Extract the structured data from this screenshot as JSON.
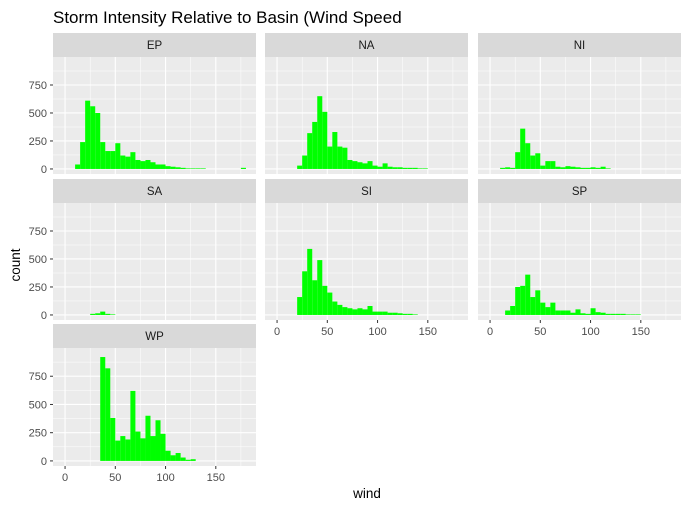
{
  "chart_data": {
    "type": "bar",
    "chart_kind": "faceted histogram",
    "title": "Storm Intensity Relative to Basin (Wind Speed",
    "xlabel": "wind",
    "ylabel": "count",
    "xlim": [
      -12,
      190
    ],
    "ylim": [
      -45,
      1000
    ],
    "x_ticks": [
      0,
      50,
      100,
      150
    ],
    "y_ticks": [
      0,
      250,
      500,
      750
    ],
    "bin_width": 5,
    "grid": true,
    "bar_color": "#00ff00",
    "panel_background": "#ebebeb",
    "strip_background": "#d9d9d9",
    "grid_color": "#ffffff",
    "facets": [
      {
        "label": "EP",
        "bin_starts": [
          10,
          15,
          20,
          25,
          30,
          35,
          40,
          45,
          50,
          55,
          60,
          65,
          70,
          75,
          80,
          85,
          90,
          95,
          100,
          105,
          110,
          115,
          120,
          125,
          130,
          135,
          175
        ],
        "counts": [
          40,
          240,
          610,
          560,
          500,
          240,
          160,
          160,
          230,
          120,
          110,
          150,
          80,
          70,
          80,
          60,
          40,
          40,
          25,
          20,
          15,
          10,
          5,
          5,
          5,
          5,
          10
        ]
      },
      {
        "label": "NA",
        "bin_starts": [
          20,
          25,
          30,
          35,
          40,
          45,
          50,
          55,
          60,
          65,
          70,
          75,
          80,
          85,
          90,
          95,
          100,
          105,
          110,
          115,
          120,
          125,
          130,
          135,
          140,
          145
        ],
        "counts": [
          30,
          120,
          320,
          420,
          650,
          510,
          200,
          330,
          200,
          190,
          80,
          70,
          60,
          50,
          70,
          30,
          20,
          50,
          20,
          15,
          15,
          10,
          10,
          10,
          5,
          5
        ]
      },
      {
        "label": "NI",
        "bin_starts": [
          10,
          15,
          20,
          25,
          30,
          35,
          40,
          45,
          50,
          55,
          60,
          65,
          70,
          75,
          80,
          85,
          90,
          95,
          100,
          105,
          110,
          115
        ],
        "counts": [
          10,
          15,
          10,
          150,
          360,
          230,
          120,
          140,
          30,
          70,
          70,
          20,
          15,
          25,
          20,
          15,
          10,
          10,
          15,
          10,
          20,
          5
        ]
      },
      {
        "label": "SA",
        "bin_starts": [
          25,
          30,
          35,
          40,
          45
        ],
        "counts": [
          10,
          15,
          30,
          10,
          5
        ]
      },
      {
        "label": "SI",
        "bin_starts": [
          20,
          25,
          30,
          35,
          40,
          45,
          50,
          55,
          60,
          65,
          70,
          75,
          80,
          85,
          90,
          95,
          100,
          105,
          110,
          115,
          120,
          125,
          130,
          135
        ],
        "counts": [
          160,
          390,
          590,
          310,
          490,
          260,
          200,
          120,
          90,
          70,
          60,
          50,
          60,
          50,
          80,
          30,
          30,
          30,
          20,
          20,
          15,
          10,
          10,
          5
        ]
      },
      {
        "label": "SP",
        "bin_starts": [
          15,
          20,
          25,
          30,
          35,
          40,
          45,
          50,
          55,
          60,
          65,
          70,
          75,
          80,
          85,
          90,
          95,
          100,
          105,
          110,
          115,
          120,
          125,
          130,
          135,
          140,
          145
        ],
        "counts": [
          40,
          80,
          250,
          260,
          360,
          160,
          220,
          110,
          70,
          110,
          40,
          40,
          40,
          20,
          50,
          15,
          10,
          60,
          25,
          20,
          10,
          10,
          10,
          10,
          5,
          5,
          5
        ]
      },
      {
        "label": "WP",
        "bin_starts": [
          35,
          40,
          45,
          50,
          55,
          60,
          65,
          70,
          75,
          80,
          85,
          90,
          95,
          100,
          105,
          110,
          115,
          120,
          125
        ],
        "counts": [
          920,
          820,
          380,
          180,
          220,
          190,
          620,
          260,
          200,
          400,
          220,
          360,
          240,
          90,
          50,
          70,
          30,
          10,
          15
        ]
      }
    ]
  }
}
